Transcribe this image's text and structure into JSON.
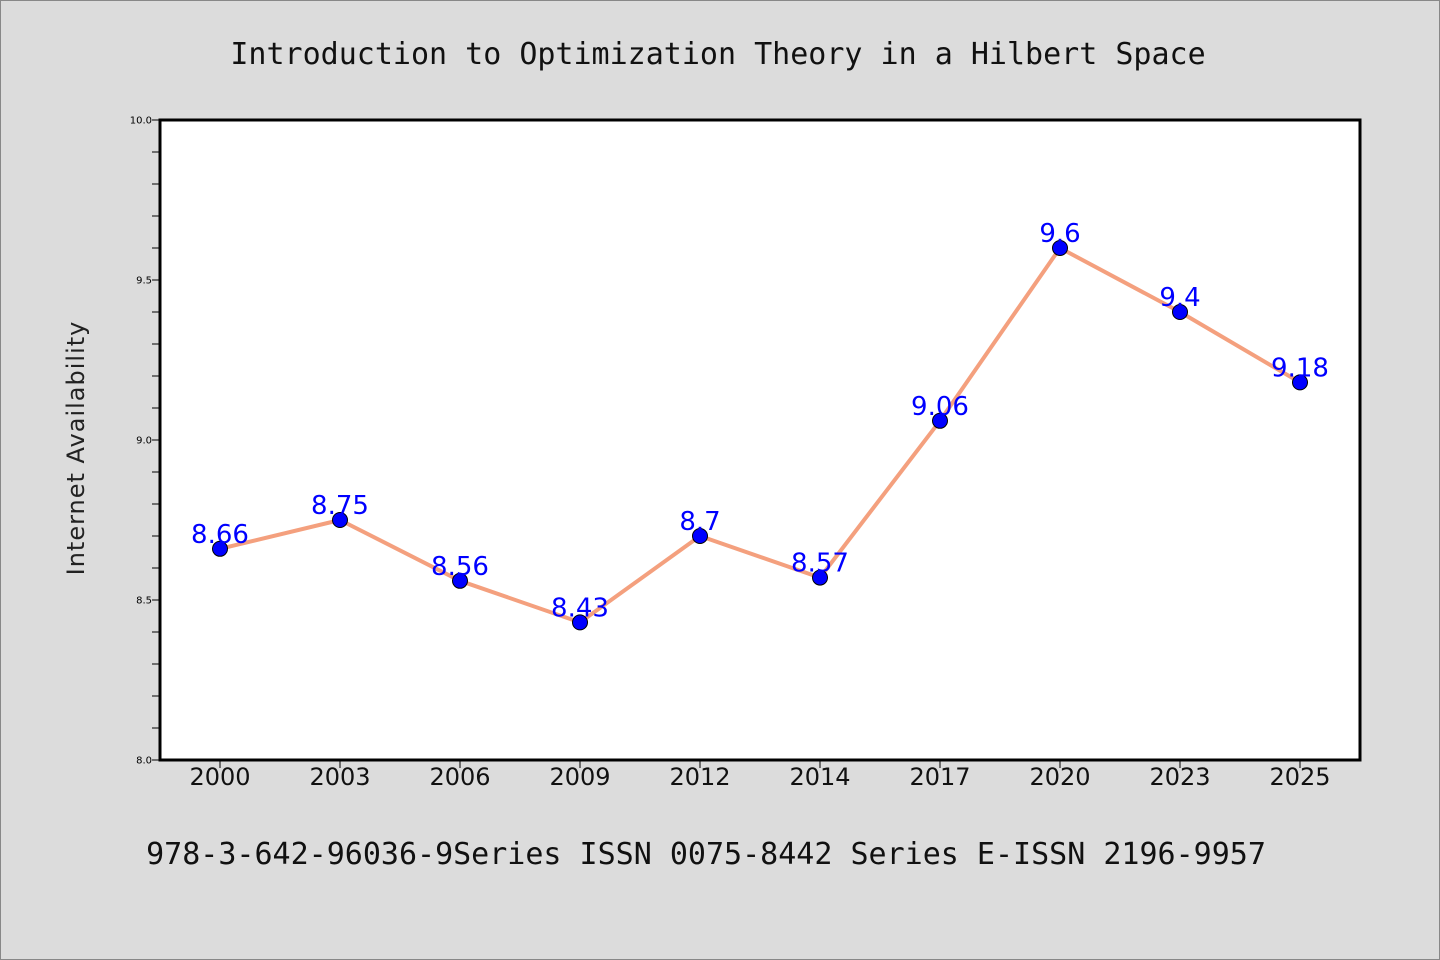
{
  "chart_data": {
    "type": "line",
    "title": "Introduction to Optimization Theory in a Hilbert Space",
    "ylabel": "Internet Availability",
    "xlabel": "",
    "categories": [
      "2000",
      "2003",
      "2006",
      "2009",
      "2012",
      "2014",
      "2017",
      "2020",
      "2023",
      "2025"
    ],
    "series": [
      {
        "values": [
          8.66,
          8.75,
          8.56,
          8.43,
          8.7,
          8.57,
          9.06,
          9.6,
          9.4,
          9.18
        ]
      }
    ],
    "data_labels": [
      "8.66",
      "8.75",
      "8.56",
      "8.43",
      "8.7",
      "8.57",
      "9.06",
      "9.6",
      "9.4",
      "9.18"
    ],
    "ylim": [
      8.0,
      10.0
    ],
    "yticks": [
      "8.0",
      "8.5",
      "9.0",
      "9.5",
      "10.0"
    ],
    "grid": false,
    "line_color": "#f4a07e",
    "marker_color": "#0000ff",
    "label_color": "#0000ff",
    "background_color": "#dcdcdc"
  },
  "footer": {
    "text": "978-3-642-96036-9Series ISSN 0075-8442 Series E-ISSN 2196-9957"
  }
}
